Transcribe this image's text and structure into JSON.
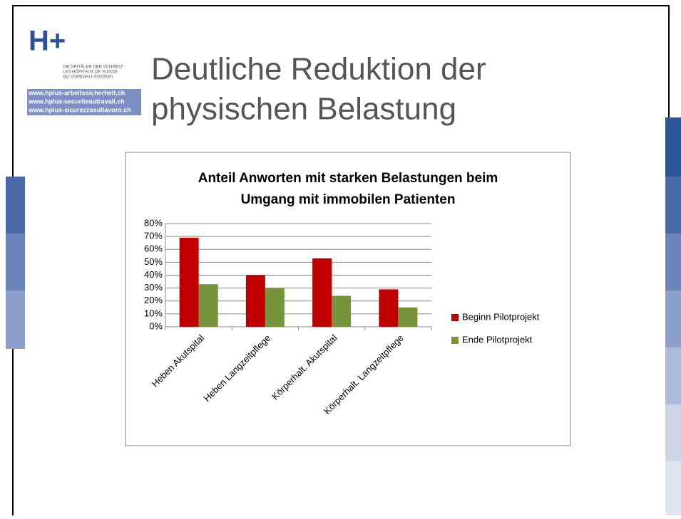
{
  "slide": {
    "title_line1": "Deutliche Reduktion der",
    "title_line2": "physischen Belastung"
  },
  "logo": {
    "mark": "H+",
    "lines": [
      "DIE SPITÄLER DER SCHWEIZ",
      "LES HÔPITAUX DE SUISSE",
      "GLI OSPEDALI SVIZZERI"
    ],
    "urls": [
      "www.hplus-arbeitssicherheit.ch",
      "www.hplus-securiteautravail.ch",
      "www.hplus-sicurezzasullavoro.ch"
    ]
  },
  "chart_data": {
    "type": "bar",
    "title_lines": [
      "Anteil Anworten mit starken Belastungen beim",
      "Umgang mit immobilen Patienten"
    ],
    "categories": [
      "Heben Akutspital",
      "Heben Langzeitpflege",
      "Körperhalt. Akutspital",
      "Körperhalt. Langzeitpflege"
    ],
    "series": [
      {
        "name": "Beginn Pilotprojekt",
        "color": "#c00000",
        "values": [
          69,
          40,
          53,
          29
        ]
      },
      {
        "name": "Ende Pilotprojekt",
        "color": "#77933c",
        "values": [
          33,
          30,
          24,
          15
        ]
      }
    ],
    "ylim": [
      0,
      80
    ],
    "yticks": [
      {
        "value": 0,
        "label": "0%"
      },
      {
        "value": 10,
        "label": "10%"
      },
      {
        "value": 20,
        "label": "20%"
      },
      {
        "value": 30,
        "label": "30%"
      },
      {
        "value": 40,
        "label": "40%"
      },
      {
        "value": 50,
        "label": "50%"
      },
      {
        "value": 60,
        "label": "60%"
      },
      {
        "value": 70,
        "label": "70%"
      },
      {
        "value": 80,
        "label": "80%"
      }
    ],
    "grid": true,
    "legend": "right"
  }
}
